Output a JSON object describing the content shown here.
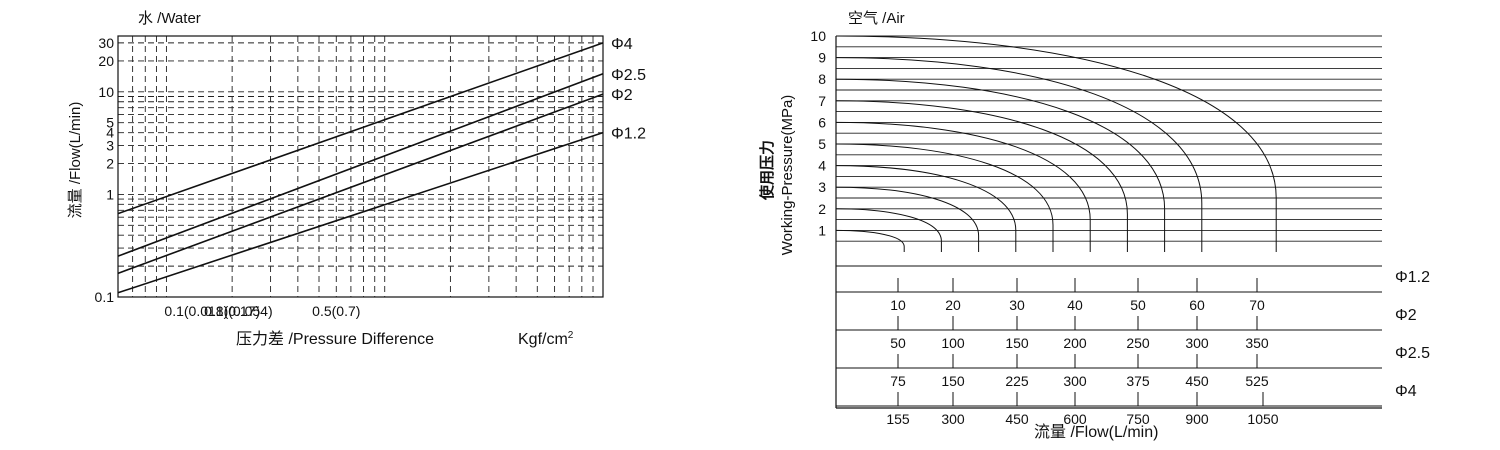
{
  "chart_data": [
    {
      "type": "line",
      "title": "水 /Water",
      "ylabel": "流量 /Flow(L/min)",
      "xlabel": "压力差 /Pressure Difference",
      "unit_label": "Kgf/cm",
      "unit_superscript": "2",
      "y_scale": "log",
      "x_scale": "log",
      "ylim": [
        0.1,
        35
      ],
      "xlim": [
        0.06,
        10
      ],
      "grid": true,
      "grid_style": "dashed",
      "y_ticks": [
        {
          "value": 30,
          "label": "30"
        },
        {
          "value": 20,
          "label": "20"
        },
        {
          "value": 10,
          "label": "10"
        },
        {
          "value": 5,
          "label": "5"
        },
        {
          "value": 4,
          "label": "4"
        },
        {
          "value": 3,
          "label": "3"
        },
        {
          "value": 2,
          "label": "2"
        },
        {
          "value": 1,
          "label": "1"
        },
        {
          "value": 0.1,
          "label": "0.1"
        }
      ],
      "x_tick_labels": [
        {
          "value": 0.1,
          "label": "0.1(0.018)(0.054)"
        },
        {
          "value": 0.2,
          "label": "0.1(0.17)"
        },
        {
          "value": 0.6,
          "label": "0.5(0.7)"
        }
      ],
      "series": [
        {
          "name": "Φ4",
          "points": [
            [
              0.06,
              0.65
            ],
            [
              10,
              30
            ]
          ]
        },
        {
          "name": "Φ2.5",
          "points": [
            [
              0.06,
              0.25
            ],
            [
              10,
              15
            ]
          ]
        },
        {
          "name": "Φ2",
          "points": [
            [
              0.06,
              0.17
            ],
            [
              10,
              9.5
            ]
          ]
        },
        {
          "name": "Φ1.2",
          "points": [
            [
              0.06,
              0.11
            ],
            [
              10,
              4
            ]
          ]
        }
      ]
    },
    {
      "type": "line",
      "title": "空气 /Air",
      "ylabel_cn": "使用压力",
      "ylabel_en": "Working-Pressure(MPa)",
      "xlabel": "流量 /Flow(L/min)",
      "ylim": [
        0,
        10
      ],
      "y_ticks": [
        "1",
        "2",
        "3",
        "4",
        "5",
        "6",
        "7",
        "8",
        "9",
        "10"
      ],
      "flow_scales": [
        {
          "name": "Φ1.2",
          "values": [
            "10",
            "20",
            "30",
            "40",
            "50",
            "60",
            "70"
          ]
        },
        {
          "name": "Φ2",
          "values": [
            "50",
            "100",
            "150",
            "200",
            "250",
            "300",
            "350"
          ]
        },
        {
          "name": "Φ2.5",
          "values": [
            "75",
            "150",
            "225",
            "300",
            "375",
            "450",
            "525"
          ]
        },
        {
          "name": "Φ4",
          "values": [
            "155",
            "300",
            "450",
            "600",
            "750",
            "900",
            "1050"
          ]
        }
      ],
      "curves": [
        {
          "pressure": 1,
          "flow_phi1_2": 11
        },
        {
          "pressure": 2,
          "flow_phi1_2": 17
        },
        {
          "pressure": 3,
          "flow_phi1_2": 23
        },
        {
          "pressure": 4,
          "flow_phi1_2": 29
        },
        {
          "pressure": 5,
          "flow_phi1_2": 35
        },
        {
          "pressure": 6,
          "flow_phi1_2": 41
        },
        {
          "pressure": 7,
          "flow_phi1_2": 47
        },
        {
          "pressure": 8,
          "flow_phi1_2": 53
        },
        {
          "pressure": 9,
          "flow_phi1_2": 59
        },
        {
          "pressure": 10,
          "flow_phi1_2": 71
        }
      ]
    }
  ]
}
